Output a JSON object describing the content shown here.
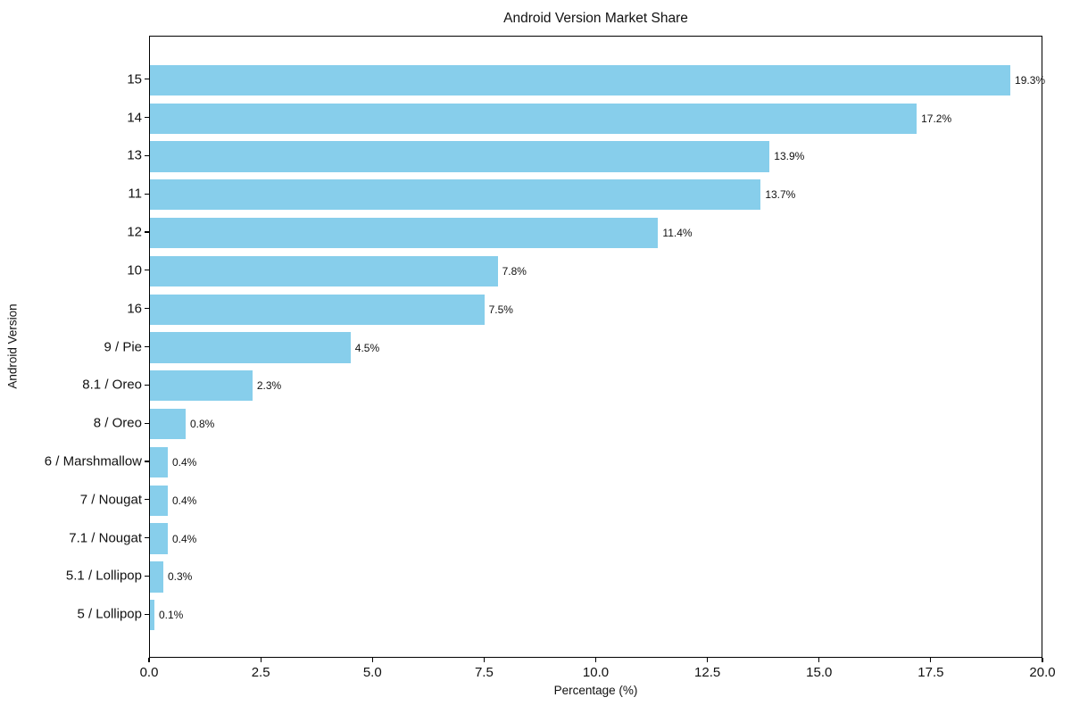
{
  "chart_data": {
    "type": "bar",
    "orientation": "horizontal",
    "title": "Android Version Market Share",
    "xlabel": "Percentage (%)",
    "ylabel": "Android Version",
    "categories": [
      "15",
      "14",
      "13",
      "11",
      "12",
      "10",
      "16",
      "9 / Pie",
      "8.1 / Oreo",
      "8 / Oreo",
      "6 / Marshmallow",
      "7 / Nougat",
      "7.1 / Nougat",
      "5.1 / Lollipop",
      "5 / Lollipop"
    ],
    "values": [
      19.3,
      17.2,
      13.9,
      13.7,
      11.4,
      7.8,
      7.5,
      4.5,
      2.3,
      0.8,
      0.4,
      0.4,
      0.4,
      0.3,
      0.1
    ],
    "value_labels": [
      "19.3%",
      "17.2%",
      "13.9%",
      "13.7%",
      "11.4%",
      "7.8%",
      "7.5%",
      "4.5%",
      "2.3%",
      "0.8%",
      "0.4%",
      "0.4%",
      "0.4%",
      "0.3%",
      "0.1%"
    ],
    "xlim": [
      0,
      20
    ],
    "x_ticks": [
      "0.0",
      "2.5",
      "5.0",
      "7.5",
      "10.0",
      "12.5",
      "15.0",
      "17.5",
      "20.0"
    ],
    "x_tick_values": [
      0,
      2.5,
      5,
      7.5,
      10,
      12.5,
      15,
      17.5,
      20
    ],
    "bar_color": "#87CEEB",
    "grid": false,
    "legend": null
  }
}
